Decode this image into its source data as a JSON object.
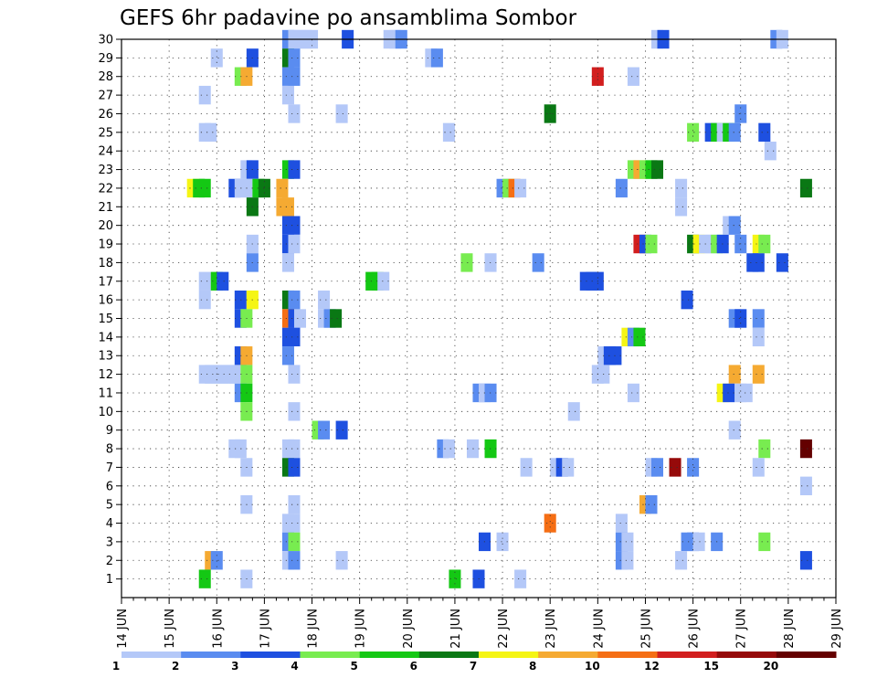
{
  "chart_data": {
    "type": "heatmap",
    "title": "GEFS 6hr padavine po ansamblima Sombor",
    "xlabel": "",
    "ylabel": "",
    "x_ticks": [
      "14 JUN",
      "15 JUN",
      "16 JUN",
      "17 JUN",
      "18 JUN",
      "19 JUN",
      "20 JUN",
      "21 JUN",
      "22 JUN",
      "23 JUN",
      "24 JUN",
      "25 JUN",
      "26 JUN",
      "27 JUN",
      "28 JUN",
      "29 JUN"
    ],
    "y_ticks": [
      "1",
      "2",
      "3",
      "4",
      "5",
      "6",
      "7",
      "8",
      "9",
      "10",
      "11",
      "12",
      "13",
      "14",
      "15",
      "16",
      "17",
      "18",
      "19",
      "20",
      "21",
      "22",
      "23",
      "24",
      "25",
      "26",
      "27",
      "28",
      "29",
      "30"
    ],
    "ylim": [
      0,
      30
    ],
    "step_hours": 6,
    "steps": 61,
    "grid": true,
    "colorbar": {
      "labels": [
        "1",
        "2",
        "3",
        "4",
        "5",
        "6",
        "7",
        "8",
        "10",
        "12",
        "15",
        "20"
      ],
      "colors": [
        "#b4c8f8",
        "#5a8cf0",
        "#1e50e0",
        "#78ec50",
        "#14c814",
        "#0a7814",
        "#f5f514",
        "#f5aa32",
        "#f56e14",
        "#d21e1e",
        "#960a0a",
        "#640000"
      ]
    },
    "cells": [
      {
        "m": 30,
        "s": [
          [
            28,
            2
          ],
          [
            29,
            1
          ],
          [
            30,
            1
          ],
          [
            31,
            1
          ],
          [
            32,
            1
          ],
          [
            38,
            3
          ],
          [
            45,
            1
          ],
          [
            46,
            1
          ],
          [
            47,
            2
          ],
          [
            90,
            1
          ],
          [
            91,
            3
          ],
          [
            110,
            2
          ],
          [
            111,
            1
          ]
        ]
      },
      {
        "m": 29,
        "s": [
          [
            16,
            1
          ],
          [
            22,
            3
          ],
          [
            28,
            6
          ],
          [
            29,
            2
          ],
          [
            52,
            1
          ],
          [
            53,
            2
          ]
        ]
      },
      {
        "m": 28,
        "s": [
          [
            20,
            4
          ],
          [
            21,
            8
          ],
          [
            28,
            2
          ],
          [
            29,
            2
          ],
          [
            80,
            12
          ],
          [
            86,
            1
          ]
        ]
      },
      {
        "m": 27,
        "s": [
          [
            14,
            1
          ],
          [
            28,
            1
          ]
        ]
      },
      {
        "m": 26,
        "s": [
          [
            29,
            1
          ],
          [
            37,
            1
          ],
          [
            72,
            6
          ],
          [
            104,
            2
          ]
        ]
      },
      {
        "m": 25,
        "s": [
          [
            14,
            1
          ],
          [
            15,
            1
          ],
          [
            55,
            1
          ],
          [
            96,
            4
          ],
          [
            99,
            3
          ],
          [
            100,
            5
          ],
          [
            101,
            1
          ],
          [
            102,
            5
          ],
          [
            103,
            2
          ],
          [
            108,
            3
          ]
        ]
      },
      {
        "m": 24,
        "s": [
          [
            109,
            1
          ]
        ]
      },
      {
        "m": 23,
        "s": [
          [
            21,
            1
          ],
          [
            22,
            3
          ],
          [
            28,
            5
          ],
          [
            29,
            3
          ],
          [
            86,
            4
          ],
          [
            87,
            8
          ],
          [
            88,
            4
          ],
          [
            89,
            5
          ],
          [
            90,
            6
          ]
        ]
      },
      {
        "m": 22,
        "s": [
          [
            12,
            7
          ],
          [
            13,
            5
          ],
          [
            14,
            5
          ],
          [
            19,
            3
          ],
          [
            20,
            1
          ],
          [
            21,
            1
          ],
          [
            23,
            5
          ],
          [
            24,
            6
          ],
          [
            27,
            8
          ],
          [
            64,
            2
          ],
          [
            65,
            4
          ],
          [
            66,
            10
          ],
          [
            67,
            1
          ],
          [
            84,
            2
          ],
          [
            94,
            1
          ],
          [
            115,
            6
          ]
        ]
      },
      {
        "m": 21,
        "s": [
          [
            22,
            6
          ],
          [
            27,
            8
          ],
          [
            28,
            8
          ],
          [
            94,
            1
          ]
        ]
      },
      {
        "m": 20,
        "s": [
          [
            28,
            3
          ],
          [
            29,
            3
          ],
          [
            102,
            1
          ],
          [
            103,
            2
          ]
        ]
      },
      {
        "m": 19,
        "s": [
          [
            22,
            1
          ],
          [
            28,
            3
          ],
          [
            29,
            1
          ],
          [
            87,
            12
          ],
          [
            88,
            3
          ],
          [
            89,
            4
          ],
          [
            96,
            6
          ],
          [
            97,
            7
          ],
          [
            98,
            1
          ],
          [
            99,
            1
          ],
          [
            100,
            4
          ],
          [
            101,
            3
          ],
          [
            104,
            2
          ],
          [
            107,
            7
          ],
          [
            108,
            4
          ]
        ]
      },
      {
        "m": 18,
        "s": [
          [
            22,
            2
          ],
          [
            28,
            1
          ],
          [
            58,
            4
          ],
          [
            62,
            1
          ],
          [
            70,
            2
          ],
          [
            106,
            3
          ],
          [
            107,
            3
          ],
          [
            111,
            3
          ]
        ]
      },
      {
        "m": 17,
        "s": [
          [
            14,
            1
          ],
          [
            16,
            5
          ],
          [
            17,
            3
          ],
          [
            42,
            5
          ],
          [
            43,
            5
          ],
          [
            44,
            1
          ],
          [
            78,
            3
          ],
          [
            79,
            3
          ],
          [
            80,
            3
          ]
        ]
      },
      {
        "m": 16,
        "s": [
          [
            14,
            1
          ],
          [
            20,
            3
          ],
          [
            22,
            7
          ],
          [
            28,
            6
          ],
          [
            29,
            2
          ],
          [
            34,
            1
          ],
          [
            95,
            3
          ]
        ]
      },
      {
        "m": 15,
        "s": [
          [
            20,
            3
          ],
          [
            21,
            4
          ],
          [
            28,
            10
          ],
          [
            29,
            3
          ],
          [
            30,
            1
          ],
          [
            34,
            1
          ],
          [
            35,
            2
          ],
          [
            36,
            6
          ],
          [
            103,
            2
          ],
          [
            104,
            3
          ],
          [
            107,
            2
          ]
        ]
      },
      {
        "m": 14,
        "s": [
          [
            28,
            3
          ],
          [
            29,
            3
          ],
          [
            85,
            7
          ],
          [
            86,
            2
          ],
          [
            87,
            5
          ],
          [
            107,
            1
          ]
        ]
      },
      {
        "m": 13,
        "s": [
          [
            20,
            3
          ],
          [
            21,
            8
          ],
          [
            28,
            2
          ],
          [
            81,
            1
          ],
          [
            82,
            3
          ],
          [
            83,
            3
          ]
        ]
      },
      {
        "m": 12,
        "s": [
          [
            14,
            1
          ],
          [
            15,
            1
          ],
          [
            16,
            1
          ],
          [
            17,
            1
          ],
          [
            18,
            1
          ],
          [
            19,
            1
          ],
          [
            21,
            4
          ],
          [
            29,
            1
          ],
          [
            80,
            1
          ],
          [
            81,
            1
          ],
          [
            103,
            8
          ],
          [
            107,
            8
          ]
        ]
      },
      {
        "m": 11,
        "s": [
          [
            20,
            2
          ],
          [
            21,
            5
          ],
          [
            60,
            2
          ],
          [
            61,
            1
          ],
          [
            62,
            2
          ],
          [
            86,
            1
          ],
          [
            101,
            7
          ],
          [
            102,
            3
          ],
          [
            104,
            1
          ],
          [
            105,
            1
          ]
        ]
      },
      {
        "m": 10,
        "s": [
          [
            21,
            4
          ],
          [
            29,
            1
          ],
          [
            76,
            1
          ]
        ]
      },
      {
        "m": 9,
        "s": [
          [
            33,
            4
          ],
          [
            34,
            2
          ],
          [
            37,
            3
          ],
          [
            103,
            1
          ]
        ]
      },
      {
        "m": 8,
        "s": [
          [
            19,
            1
          ],
          [
            20,
            1
          ],
          [
            28,
            1
          ],
          [
            29,
            1
          ],
          [
            54,
            2
          ],
          [
            55,
            1
          ],
          [
            59,
            1
          ],
          [
            62,
            5
          ],
          [
            108,
            4
          ],
          [
            115,
            20
          ]
        ]
      },
      {
        "m": 7,
        "s": [
          [
            21,
            1
          ],
          [
            28,
            6
          ],
          [
            29,
            3
          ],
          [
            68,
            1
          ],
          [
            73,
            1
          ],
          [
            74,
            3
          ],
          [
            75,
            1
          ],
          [
            89,
            1
          ],
          [
            90,
            2
          ],
          [
            93,
            15
          ],
          [
            96,
            2
          ],
          [
            107,
            1
          ]
        ]
      },
      {
        "m": 6,
        "s": [
          [
            115,
            1
          ]
        ]
      },
      {
        "m": 5,
        "s": [
          [
            21,
            1
          ],
          [
            29,
            1
          ],
          [
            88,
            8
          ],
          [
            89,
            2
          ]
        ]
      },
      {
        "m": 4,
        "s": [
          [
            28,
            1
          ],
          [
            29,
            1
          ],
          [
            72,
            10
          ],
          [
            84,
            1
          ]
        ]
      },
      {
        "m": 3,
        "s": [
          [
            28,
            2
          ],
          [
            29,
            4
          ],
          [
            61,
            3
          ],
          [
            64,
            1
          ],
          [
            84,
            2
          ],
          [
            85,
            1
          ],
          [
            95,
            2
          ],
          [
            96,
            2
          ],
          [
            97,
            1
          ],
          [
            100,
            2
          ],
          [
            108,
            4
          ]
        ]
      },
      {
        "m": 2,
        "s": [
          [
            15,
            8
          ],
          [
            16,
            2
          ],
          [
            28,
            1
          ],
          [
            29,
            2
          ],
          [
            37,
            1
          ],
          [
            84,
            2
          ],
          [
            85,
            1
          ],
          [
            94,
            1
          ],
          [
            115,
            3
          ]
        ]
      },
      {
        "m": 1,
        "s": [
          [
            14,
            5
          ],
          [
            21,
            1
          ],
          [
            56,
            5
          ],
          [
            60,
            3
          ],
          [
            67,
            1
          ]
        ]
      }
    ]
  }
}
